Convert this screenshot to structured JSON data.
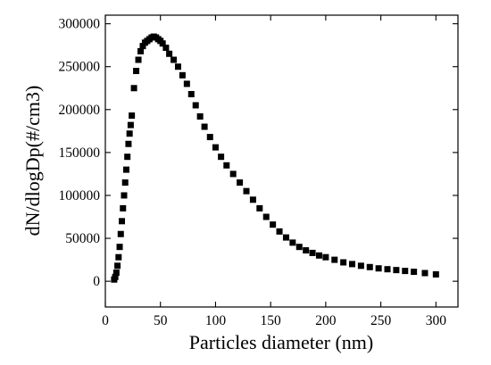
{
  "chart_data": {
    "type": "scatter",
    "title": "",
    "xlabel": "Particles diameter (nm)",
    "ylabel": "dN/dlogDp(#/cm3)",
    "xlim": [
      0,
      320
    ],
    "ylim": [
      -30000,
      310000
    ],
    "x_ticks": [
      0,
      50,
      100,
      150,
      200,
      250,
      300
    ],
    "x_tick_labels": [
      "0",
      "50",
      "100",
      "150",
      "200",
      "250",
      "300"
    ],
    "y_ticks": [
      0,
      50000,
      100000,
      150000,
      200000,
      250000,
      300000
    ],
    "y_tick_labels": [
      "0",
      "50000",
      "100000",
      "150000",
      "200000",
      "250000",
      "300000"
    ],
    "grid": false,
    "legend": "none",
    "marker": "square",
    "marker_color": "#000000",
    "series": [
      {
        "x": [
          8,
          9,
          10,
          11,
          12,
          13,
          14,
          15,
          16,
          17,
          18,
          19,
          20,
          21,
          22,
          23,
          24,
          26,
          28,
          30,
          32,
          34,
          36,
          38,
          40,
          42,
          44,
          46,
          48,
          50,
          52,
          55,
          58,
          62,
          66,
          70,
          74,
          78,
          82,
          86,
          90,
          95,
          100,
          105,
          110,
          116,
          122,
          128,
          134,
          140,
          146,
          152,
          158,
          164,
          170,
          176,
          182,
          188,
          194,
          200,
          208,
          216,
          224,
          232,
          240,
          248,
          256,
          264,
          272,
          280,
          290,
          300
        ],
        "y": [
          2000,
          5000,
          10000,
          18000,
          28000,
          40000,
          55000,
          70000,
          85000,
          100000,
          115000,
          130000,
          145000,
          160000,
          172000,
          182000,
          193000,
          225000,
          245000,
          258000,
          268000,
          274000,
          278000,
          280000,
          282000,
          284000,
          285000,
          284000,
          282000,
          280000,
          277000,
          272000,
          265000,
          258000,
          250000,
          240000,
          230000,
          218000,
          205000,
          192000,
          180000,
          168000,
          156000,
          145000,
          135000,
          125000,
          115000,
          105000,
          95000,
          85000,
          75000,
          66000,
          58000,
          51000,
          45000,
          40000,
          36000,
          33000,
          30000,
          28000,
          25000,
          22000,
          20000,
          18000,
          16500,
          15000,
          14000,
          13000,
          12000,
          11000,
          9500,
          8000
        ]
      }
    ]
  }
}
